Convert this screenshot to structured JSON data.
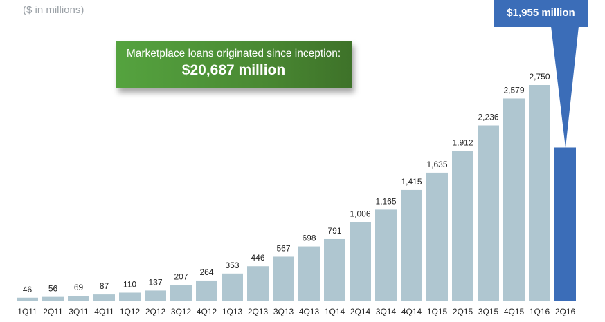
{
  "units_note": "($ in millions)",
  "callout": {
    "text": "Marketplace loans originated since inception:",
    "value": "$20,687 million"
  },
  "highlight": {
    "text": "$1,955 million"
  },
  "colors": {
    "bar": "#afc6d0",
    "highlight_bar": "#3b6db8",
    "callout": "#4e8f36"
  },
  "chart_data": {
    "type": "bar",
    "title": "",
    "xlabel": "",
    "ylabel": "",
    "ylim": [
      0,
      2750
    ],
    "grid": false,
    "legend": "none",
    "categories": [
      "1Q11",
      "2Q11",
      "3Q11",
      "4Q11",
      "1Q12",
      "2Q12",
      "3Q12",
      "4Q12",
      "1Q13",
      "2Q13",
      "3Q13",
      "4Q13",
      "1Q14",
      "2Q14",
      "3Q14",
      "4Q14",
      "1Q15",
      "2Q15",
      "3Q15",
      "4Q15",
      "1Q16",
      "2Q16"
    ],
    "values": [
      46,
      56,
      69,
      87,
      110,
      137,
      207,
      264,
      353,
      446,
      567,
      698,
      791,
      1006,
      1165,
      1415,
      1635,
      1912,
      2236,
      2579,
      2750,
      1955
    ],
    "labels": [
      "46",
      "56",
      "69",
      "87",
      "110",
      "137",
      "207",
      "264",
      "353",
      "446",
      "567",
      "698",
      "791",
      "1,006",
      "1,165",
      "1,415",
      "1,635",
      "1,912",
      "2,236",
      "2,579",
      "2,750",
      ""
    ],
    "highlight_category": "2Q16"
  }
}
